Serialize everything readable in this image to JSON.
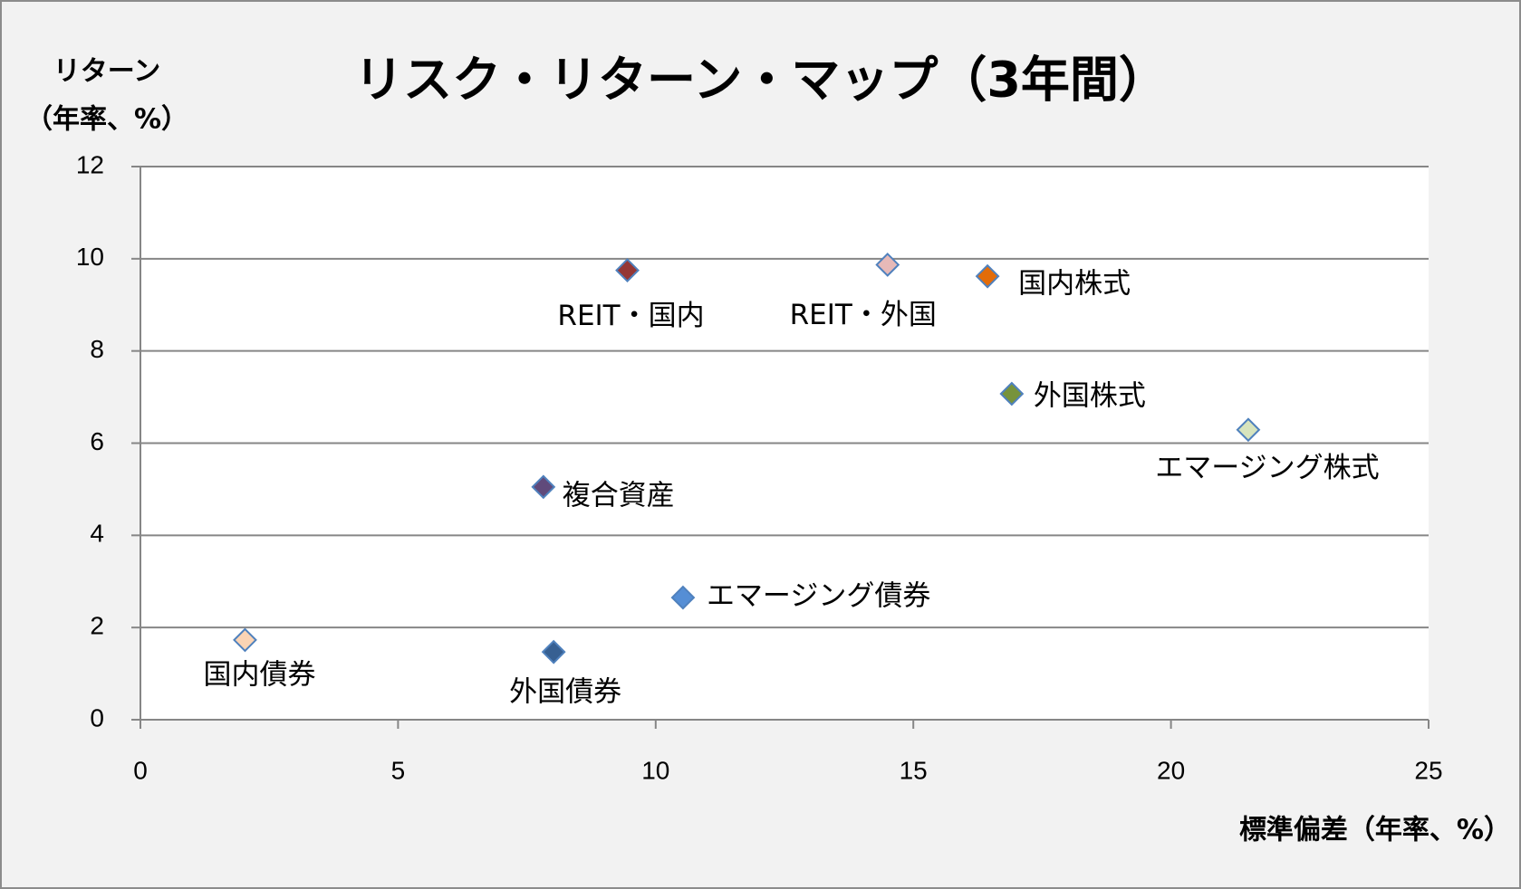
{
  "chart_data": {
    "type": "scatter",
    "title": "リスク・リターン・マップ（3年間）",
    "ylabel": [
      "リターン",
      "（年率、%）"
    ],
    "xlabel": "標準偏差（年率、%）",
    "xlim": [
      0,
      25
    ],
    "xticks": [
      0,
      5,
      10,
      15,
      20,
      25
    ],
    "ylim": [
      0,
      12
    ],
    "yticks": [
      0,
      2,
      4,
      6,
      8,
      10,
      12
    ],
    "grid": true,
    "series": [
      {
        "name": "国内債券",
        "color": "#fbd4b4",
        "x": [
          2.03
        ],
        "values": [
          1.73
        ]
      },
      {
        "name": "外国債券",
        "color": "#376092",
        "x": [
          8.02
        ],
        "values": [
          1.47
        ]
      },
      {
        "name": "エマージング債券",
        "color": "#558ed5",
        "x": [
          10.53
        ],
        "values": [
          2.65
        ]
      },
      {
        "name": "複合資産",
        "color": "#604a7b",
        "x": [
          7.82
        ],
        "values": [
          5.05
        ]
      },
      {
        "name": "REIT・国内",
        "color": "#953735",
        "x": [
          9.45
        ],
        "values": [
          9.75
        ]
      },
      {
        "name": "REIT・外国",
        "color": "#e6b9b8",
        "x": [
          14.5
        ],
        "values": [
          9.87
        ]
      },
      {
        "name": "国内株式",
        "color": "#e36c09",
        "x": [
          16.44
        ],
        "values": [
          9.62
        ]
      },
      {
        "name": "外国株式",
        "color": "#77933c",
        "x": [
          16.91
        ],
        "values": [
          7.07
        ]
      },
      {
        "name": "エマージング株式",
        "color": "#d7e4bd",
        "x": [
          21.5
        ],
        "values": [
          6.29
        ]
      }
    ]
  }
}
